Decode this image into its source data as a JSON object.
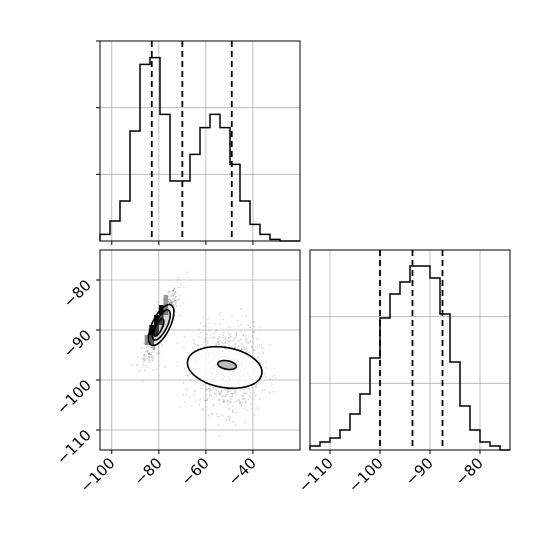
{
  "chart_data": [
    {
      "type": "histogram",
      "panel": "marginal-x",
      "xlim": [
        -105,
        -20
      ],
      "bin_edges": [
        -105,
        -100.75,
        -96.5,
        -92.25,
        -88,
        -83.75,
        -79.5,
        -75.25,
        -71,
        -66.75,
        -62.5,
        -58.25,
        -54,
        -49.75,
        -45.5,
        -41.25,
        -37,
        -32.75,
        -28.5,
        -24.25,
        -20
      ],
      "counts": [
        0.2,
        0.6,
        1.2,
        3.3,
        5.3,
        5.5,
        3.8,
        1.8,
        1.8,
        2.6,
        3.4,
        3.8,
        3.4,
        2.3,
        1.2,
        0.5,
        0.2,
        0.05,
        0,
        0
      ],
      "ylim": [
        0,
        6
      ],
      "quantiles": [
        -83,
        -70,
        -49
      ],
      "xticks": [
        -100,
        -80,
        -60,
        -40
      ],
      "xtick_labels": [
        "−100",
        "−80",
        "−60",
        "−40"
      ],
      "grid": true
    },
    {
      "type": "scatter",
      "panel": "joint",
      "xlim": [
        -105,
        -20
      ],
      "ylim": [
        -114,
        -74
      ],
      "clusters": [
        {
          "mean_x": -79,
          "mean_y": -89,
          "sd_x": 3.5,
          "sd_y": 3.4,
          "corr": 0.85,
          "n": 700
        },
        {
          "mean_x": -51,
          "mean_y": -98,
          "sd_x": 7,
          "sd_y": 4.2,
          "corr": 0,
          "n": 900
        }
      ],
      "contours": [
        {
          "level": "outer",
          "center": [
            -79,
            -89
          ],
          "rx": 9.5,
          "ry": 3.8,
          "angle": 64
        },
        {
          "level": "middle",
          "center": [
            -79,
            -89
          ],
          "rx": 7,
          "ry": 2.6,
          "angle": 64
        },
        {
          "level": "inner",
          "center": [
            -80,
            -89.5
          ],
          "rx": 4,
          "ry": 1.4,
          "angle": 64
        },
        {
          "level": "outer",
          "center": [
            -52,
            -97.5
          ],
          "rx": 16,
          "ry": 8.5,
          "angle": -10
        },
        {
          "level": "inner",
          "center": [
            -51,
            -97
          ],
          "rx": 4,
          "ry": 1.8,
          "angle": -10
        }
      ],
      "heat_cells": [
        {
          "x": -83,
          "y": -90,
          "shade": "#000000"
        },
        {
          "x": -81,
          "y": -88,
          "shade": "#000000"
        },
        {
          "x": -79,
          "y": -86,
          "shade": "#111111"
        },
        {
          "x": -81,
          "y": -90,
          "shade": "#333333"
        },
        {
          "x": -83,
          "y": -92,
          "shade": "#555555"
        },
        {
          "x": -79,
          "y": -88,
          "shade": "#444444"
        },
        {
          "x": -77,
          "y": -86,
          "shade": "#777777"
        },
        {
          "x": -85,
          "y": -92,
          "shade": "#888888"
        },
        {
          "x": -77,
          "y": -84,
          "shade": "#999999"
        }
      ],
      "xticks": [
        -100,
        -80,
        -60,
        -40
      ],
      "xtick_labels": [
        "−100",
        "−80",
        "−60",
        "−40"
      ],
      "yticks": [
        -80,
        -90,
        -100,
        -110
      ],
      "ytick_labels": [
        "−80",
        "−90",
        "−100",
        "−110"
      ],
      "grid": true
    },
    {
      "type": "histogram",
      "panel": "marginal-y",
      "xlim": [
        -114,
        -74
      ],
      "bin_edges": [
        -114,
        -112,
        -110,
        -108,
        -106,
        -104,
        -102,
        -100,
        -98,
        -96,
        -94,
        -92,
        -90,
        -88,
        -86,
        -84,
        -82,
        -80,
        -78,
        -76,
        -74
      ],
      "counts": [
        0.1,
        0.2,
        0.3,
        0.5,
        0.9,
        1.4,
        2.3,
        3.3,
        3.9,
        4.2,
        4.6,
        4.6,
        4.3,
        3.4,
        2.2,
        1.1,
        0.5,
        0.2,
        0.1,
        0
      ],
      "ylim": [
        0,
        5
      ],
      "quantiles": [
        -100,
        -93.5,
        -87.5
      ],
      "xticks": [
        -110,
        -100,
        -90,
        -80
      ],
      "xtick_labels": [
        "−110",
        "−100",
        "−90",
        "−80"
      ],
      "grid": true
    }
  ]
}
